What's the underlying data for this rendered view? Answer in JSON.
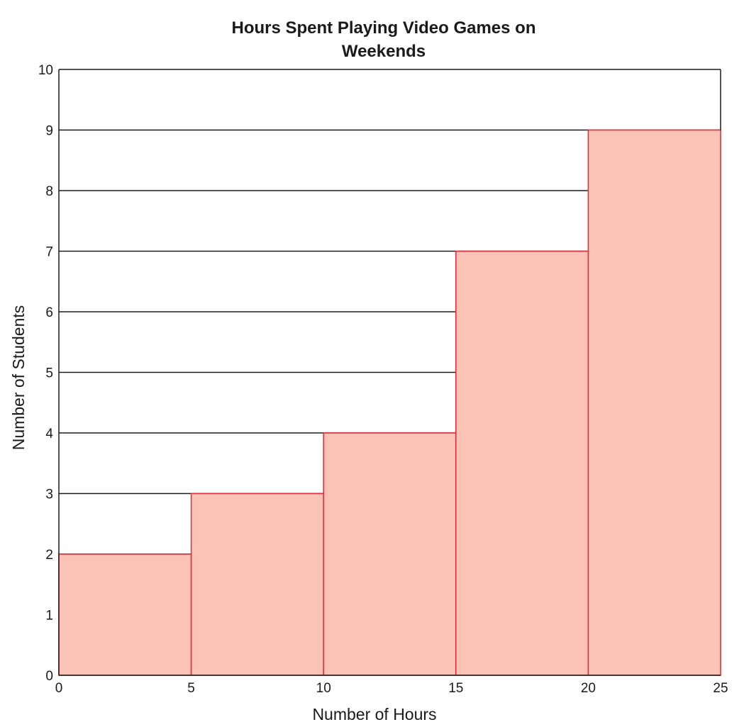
{
  "chart_data": {
    "type": "bar",
    "title_lines": [
      "Hours Spent Playing Video Games on",
      "Weekends"
    ],
    "xlabel": "Number of Hours",
    "ylabel": "Number of Students",
    "bins": [
      {
        "from": 0,
        "to": 5,
        "value": 2
      },
      {
        "from": 5,
        "to": 10,
        "value": 3
      },
      {
        "from": 10,
        "to": 15,
        "value": 4
      },
      {
        "from": 15,
        "to": 20,
        "value": 7
      },
      {
        "from": 20,
        "to": 25,
        "value": 9
      }
    ],
    "xticks": [
      "0",
      "5",
      "10",
      "15",
      "20",
      "25"
    ],
    "yticks": [
      "0",
      "1",
      "2",
      "3",
      "4",
      "5",
      "6",
      "7",
      "8",
      "9",
      "10"
    ],
    "xlim": [
      0,
      25
    ],
    "ylim": [
      0,
      10
    ],
    "grid": "horizontal",
    "colors": {
      "bar_fill": "#fbc3b5",
      "bar_stroke": "#e8303c",
      "grid": "#1a1a1a",
      "text": "#1a1a1a"
    }
  }
}
